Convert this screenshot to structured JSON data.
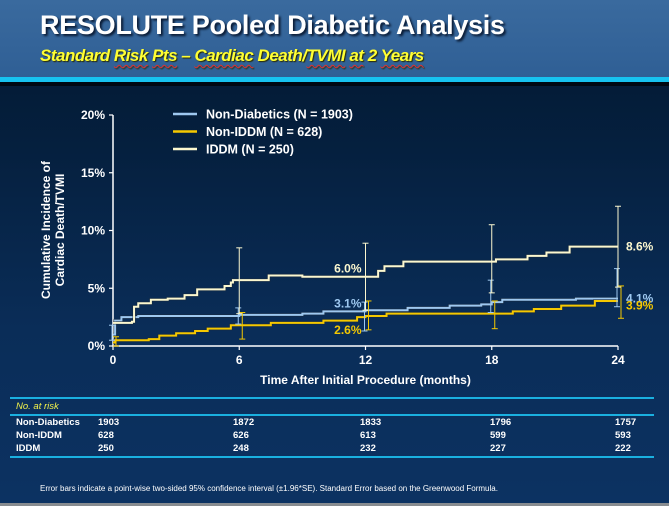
{
  "header": {
    "title": "RESOLUTE Pooled Diabetic Analysis",
    "subtitle_parts": [
      "Standard",
      " ",
      "Risk",
      " ",
      "Pts",
      " – ",
      "Cardiac",
      " Death/",
      "TVMI",
      " ",
      "at",
      " 2 ",
      "Years"
    ],
    "subtitle": "Standard Risk Pts – Cardiac Death/TVMI at 2 Years"
  },
  "colors": {
    "non_diabetics": "#9ec8f0",
    "non_iddm": "#f5c800",
    "iddm": "#fbf7cf",
    "accent_bar": "#17c2ef",
    "subtitle": "#ffff33"
  },
  "chart_data": {
    "type": "line",
    "title": "",
    "xlabel": "Time After Initial Procedure (months)",
    "ylabel_lines": [
      "Cumulative Incidence of",
      "Cardiac Death/TVMI"
    ],
    "xlim": [
      0,
      24
    ],
    "ylim": [
      0,
      20
    ],
    "x_ticks": [
      0,
      6,
      12,
      18,
      24
    ],
    "x_tick_labels": [
      "0",
      "6",
      "12",
      "18",
      "24"
    ],
    "y_ticks": [
      0,
      5,
      10,
      15,
      20
    ],
    "y_tick_labels": [
      "0%",
      "5%",
      "10%",
      "15%",
      "20%"
    ],
    "grid": false,
    "legend_position": "top-center",
    "series": [
      {
        "name": "Non-Diabetics (N = 1903)",
        "key": "non_diabetics",
        "step_points": [
          [
            0,
            1.0
          ],
          [
            0.1,
            2.2
          ],
          [
            0.4,
            2.5
          ],
          [
            1.2,
            2.6
          ],
          [
            6,
            2.7
          ],
          [
            9,
            2.8
          ],
          [
            10,
            3.0
          ],
          [
            12,
            3.1
          ],
          [
            14,
            3.3
          ],
          [
            16,
            3.5
          ],
          [
            17.5,
            3.6
          ],
          [
            18,
            3.8
          ],
          [
            18.5,
            4.0
          ],
          [
            22,
            4.1
          ],
          [
            24,
            4.1
          ]
        ],
        "end_label": "4.1%",
        "mid_label": "3.1%",
        "error_bars": [
          [
            0,
            0.5,
            1.8
          ],
          [
            6,
            1.9,
            3.3
          ],
          [
            12,
            1.3,
            3.8
          ],
          [
            18,
            2.9,
            5.7
          ],
          [
            24,
            3.4,
            6.7
          ]
        ]
      },
      {
        "name": "Non-IDDM (N = 628)",
        "key": "non_iddm",
        "step_points": [
          [
            0,
            0.3
          ],
          [
            0.1,
            0.5
          ],
          [
            1.7,
            0.6
          ],
          [
            2.2,
            0.9
          ],
          [
            3.0,
            1.1
          ],
          [
            3.9,
            1.3
          ],
          [
            4.5,
            1.5
          ],
          [
            5.6,
            1.8
          ],
          [
            7.5,
            2.0
          ],
          [
            10,
            2.2
          ],
          [
            11.6,
            2.5
          ],
          [
            12,
            2.6
          ],
          [
            13,
            2.8
          ],
          [
            19,
            3.0
          ],
          [
            20,
            3.2
          ],
          [
            21.3,
            3.5
          ],
          [
            22.9,
            3.9
          ],
          [
            24,
            3.9
          ]
        ],
        "end_label": "3.9%",
        "mid_label": "2.6%",
        "error_bars": [
          [
            0,
            0.0,
            0.8
          ],
          [
            6,
            0.6,
            2.9
          ],
          [
            12,
            1.4,
            3.9
          ],
          [
            18,
            1.5,
            3.9
          ],
          [
            24,
            2.4,
            5.2
          ]
        ]
      },
      {
        "name": "IDDM (N = 250)",
        "key": "iddm",
        "step_points": [
          [
            0,
            2.0
          ],
          [
            0.9,
            2.1
          ],
          [
            1.0,
            3.4
          ],
          [
            1.2,
            3.7
          ],
          [
            1.8,
            4.0
          ],
          [
            2.6,
            4.1
          ],
          [
            3.4,
            4.4
          ],
          [
            4.0,
            4.9
          ],
          [
            5.3,
            5.2
          ],
          [
            5.6,
            5.5
          ],
          [
            5.7,
            5.7
          ],
          [
            7.4,
            6.1
          ],
          [
            9,
            6.0
          ],
          [
            12.4,
            6.0
          ],
          [
            12.6,
            6.5
          ],
          [
            12.9,
            6.9
          ],
          [
            13.8,
            7.3
          ],
          [
            18.2,
            7.5
          ],
          [
            19.7,
            7.8
          ],
          [
            20.6,
            8.1
          ],
          [
            21.7,
            8.6
          ],
          [
            24,
            8.6
          ]
        ],
        "end_label": "8.6%",
        "mid_label": "6.0%",
        "error_bars": [
          [
            6,
            2.8,
            8.5
          ],
          [
            12,
            3.1,
            8.9
          ],
          [
            18,
            4.6,
            10.5
          ],
          [
            24,
            5.1,
            12.1
          ]
        ]
      }
    ]
  },
  "risk_table": {
    "header": "No. at risk",
    "timepoints": [
      "0",
      "6",
      "12",
      "18",
      "24"
    ],
    "rows": [
      {
        "label": "Non-Diabetics",
        "values": [
          "1903",
          "1872",
          "1833",
          "1796",
          "1757"
        ]
      },
      {
        "label": "Non-IDDM",
        "values": [
          "628",
          "626",
          "613",
          "599",
          "593"
        ]
      },
      {
        "label": "IDDM",
        "values": [
          "250",
          "248",
          "232",
          "227",
          "222"
        ]
      }
    ]
  },
  "footnote": "Error bars indicate a point-wise two-sided 95% confidence interval (±1.96*SE). Standard Error based on the Greenwood Formula."
}
